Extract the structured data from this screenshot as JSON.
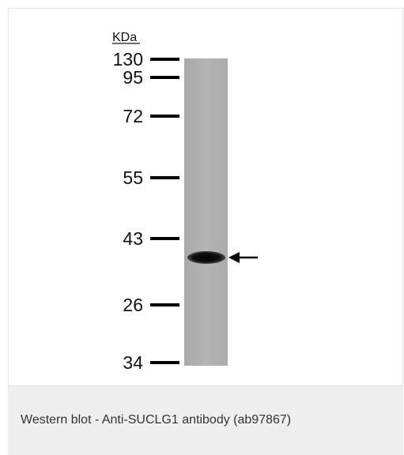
{
  "figure": {
    "unit_label": "KDa",
    "marker_labels": [
      "130",
      "95",
      "72",
      "55",
      "43",
      "26",
      "34"
    ],
    "lane_color": "#b0b0b0",
    "band_color": "#080808",
    "band_marker": "arrow-left-icon"
  },
  "caption": {
    "text": "Western blot - Anti-SUCLG1 antibody (ab97867)"
  }
}
